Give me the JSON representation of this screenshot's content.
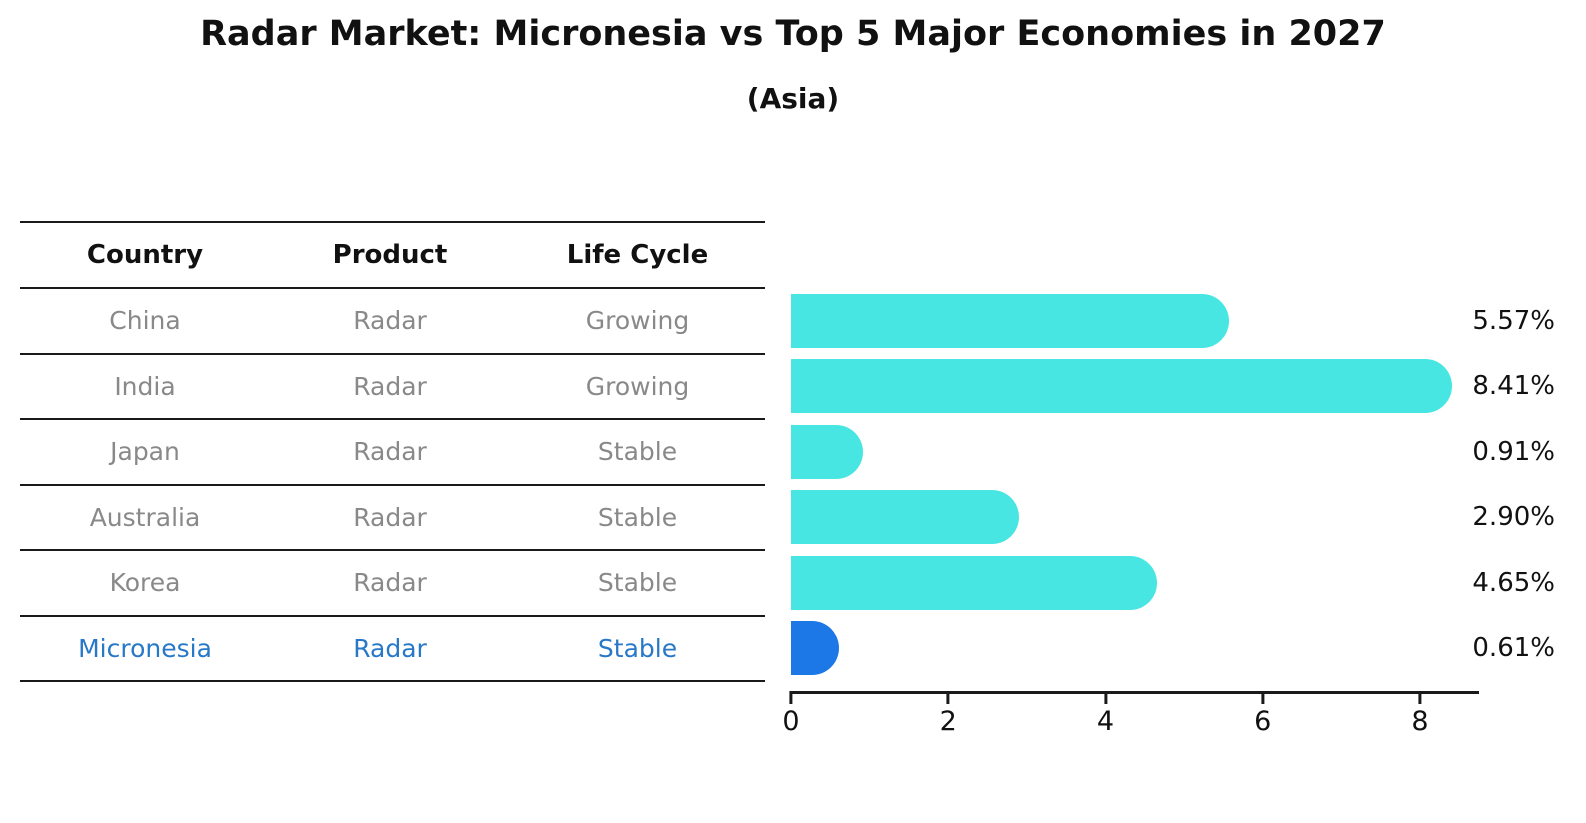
{
  "title": "Radar Market: Micronesia vs Top 5 Major Economies in 2027",
  "subtitle": "(Asia)",
  "colors": {
    "text": "#111111",
    "muted": "#898989",
    "highlight": "#2878C8",
    "line": "#1a1a1a"
  },
  "table": {
    "headers": [
      "Country",
      "Product",
      "Life Cycle"
    ],
    "rows": [
      {
        "country": "China",
        "product": "Radar",
        "life_cycle": "Growing",
        "highlight": false
      },
      {
        "country": "India",
        "product": "Radar",
        "life_cycle": "Growing",
        "highlight": false
      },
      {
        "country": "Japan",
        "product": "Radar",
        "life_cycle": "Stable",
        "highlight": false
      },
      {
        "country": "Australia",
        "product": "Radar",
        "life_cycle": "Stable",
        "highlight": false
      },
      {
        "country": "Korea",
        "product": "Radar",
        "life_cycle": "Stable",
        "highlight": false
      },
      {
        "country": "Micronesia",
        "product": "Radar",
        "life_cycle": "Stable",
        "highlight": true
      }
    ]
  },
  "chart_data": {
    "type": "bar",
    "orientation": "horizontal",
    "title": "Radar Market: Micronesia vs Top 5 Major Economies in 2027 (Asia)",
    "categories": [
      "China",
      "India",
      "Japan",
      "Australia",
      "Korea",
      "Micronesia"
    ],
    "values": [
      5.57,
      8.41,
      0.91,
      2.9,
      4.65,
      0.61
    ],
    "value_labels": [
      "5.57%",
      "8.41%",
      "0.91%",
      "2.90%",
      "4.65%",
      "0.61%"
    ],
    "unit": "percent",
    "xlim": [
      0,
      8.75
    ],
    "xticks": [
      0,
      2,
      4,
      6,
      8
    ],
    "grid": false,
    "legend": false,
    "bar_color": "#47E6E2",
    "highlight_color": "#1C78E6",
    "highlight_index": 5
  }
}
